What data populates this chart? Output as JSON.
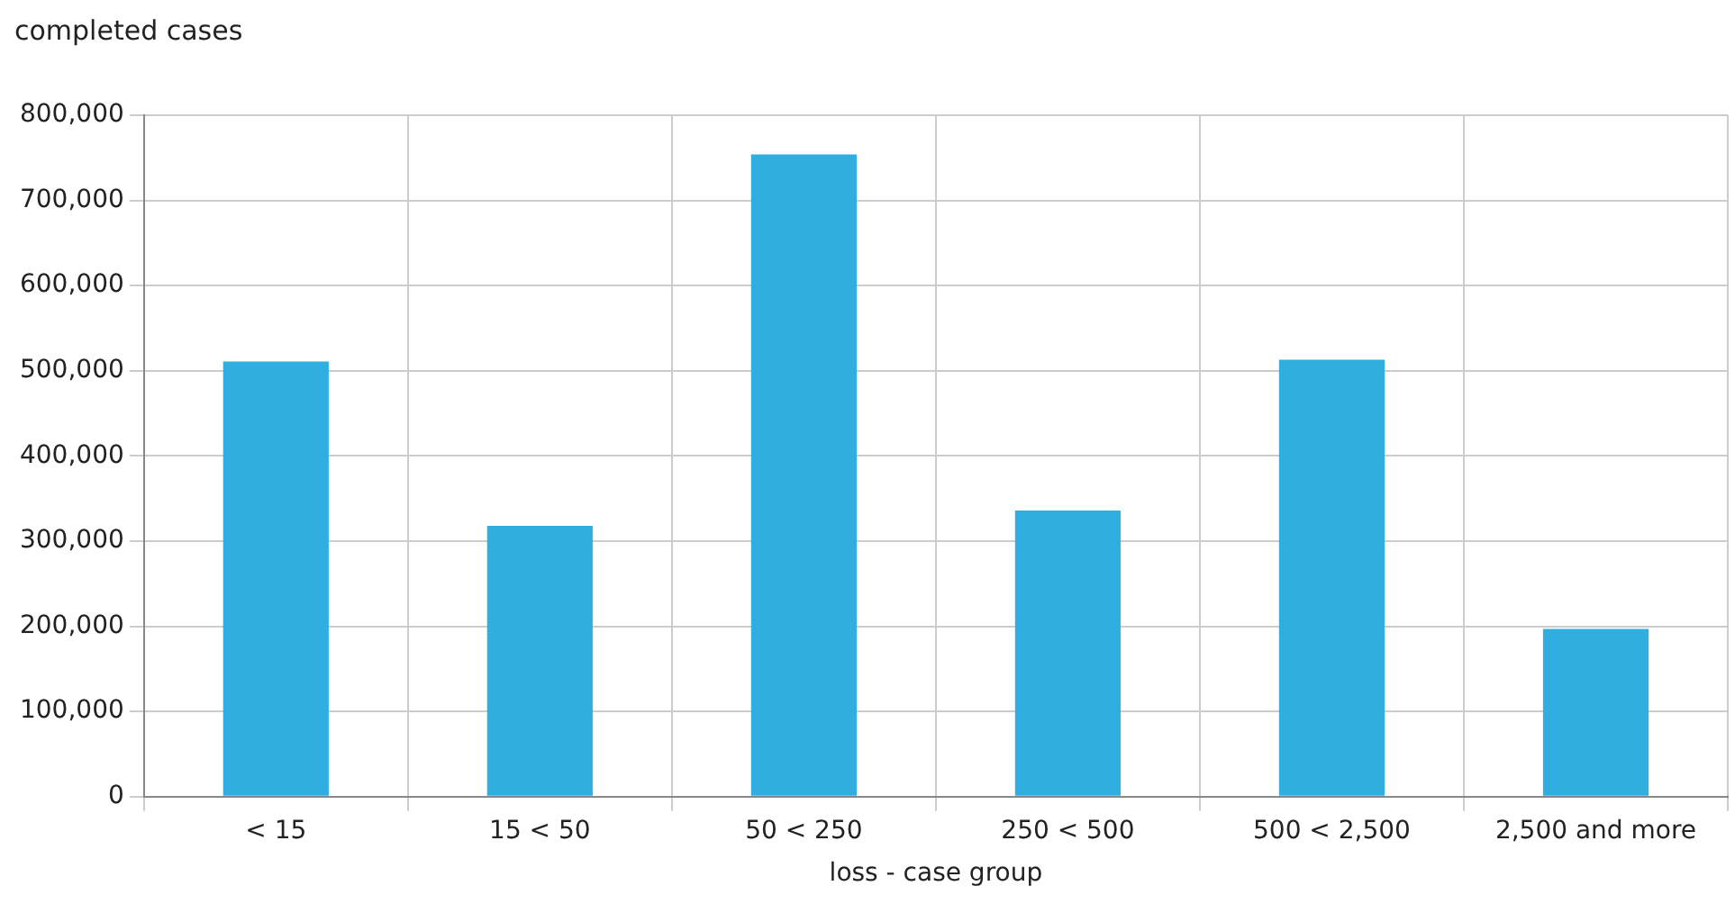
{
  "chart_data": {
    "type": "bar",
    "xlabel": "loss - case group",
    "ylabel": "completed cases",
    "categories": [
      "< 15",
      "15 < 50",
      "50 < 250",
      "250 < 500",
      "500 < 2,500",
      "2,500 and more"
    ],
    "values": [
      511000,
      318000,
      754000,
      336000,
      513000,
      197000
    ],
    "color": "#31aee0",
    "ylim": [
      0,
      800000
    ],
    "yticks": [
      0,
      {
        "value": 100000,
        "label": "100,000"
      },
      {
        "value": 200000,
        "label": "200,000"
      },
      {
        "value": 300000,
        "label": "300,000"
      },
      {
        "value": 400000,
        "label": "400,000"
      },
      {
        "value": 500000,
        "label": "500,000"
      },
      {
        "value": 600000,
        "label": "600,000"
      },
      {
        "value": 700000,
        "label": "700,000"
      },
      {
        "value": 800000,
        "label": "800,000"
      }
    ],
    "grid": true,
    "legend": false
  }
}
